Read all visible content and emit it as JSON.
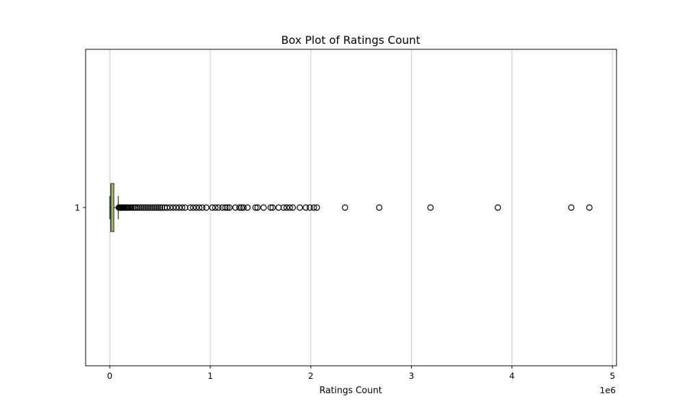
{
  "chart_data": {
    "type": "boxplot",
    "title": "Box Plot of Ratings Count",
    "xlabel": "Ratings Count",
    "ylabel": "",
    "orientation": "horizontal",
    "x_scale_label": "1e6",
    "xlim": [
      -240000,
      5040000
    ],
    "xticks": [
      0,
      1,
      2,
      3,
      4,
      5
    ],
    "x_tick_multiplier": 1000000,
    "y_categories": [
      "1"
    ],
    "grid": "x",
    "colors": {
      "box_fill": "#d8c37a",
      "median": "#4caf50",
      "outlier_edge": "#000000",
      "grid": "#c8c8c8"
    },
    "box": {
      "whisker_low": 0,
      "q1": 10000,
      "median": 20000,
      "q3": 40000,
      "whisker_high": 85000
    },
    "outliers": [
      90000,
      95000,
      100000,
      105000,
      110000,
      115000,
      120000,
      125000,
      130000,
      135000,
      140000,
      150000,
      160000,
      170000,
      180000,
      190000,
      200000,
      215000,
      230000,
      245000,
      260000,
      280000,
      300000,
      320000,
      340000,
      360000,
      380000,
      400000,
      420000,
      440000,
      460000,
      480000,
      500000,
      520000,
      545000,
      570000,
      600000,
      630000,
      660000,
      690000,
      720000,
      750000,
      800000,
      830000,
      860000,
      890000,
      920000,
      960000,
      1020000,
      1050000,
      1080000,
      1120000,
      1150000,
      1170000,
      1190000,
      1250000,
      1290000,
      1310000,
      1330000,
      1370000,
      1450000,
      1470000,
      1530000,
      1600000,
      1620000,
      1680000,
      1730000,
      1760000,
      1790000,
      1820000,
      1890000,
      1950000,
      1990000,
      2030000,
      2060000,
      2340000,
      2680000,
      3190000,
      3860000,
      4590000,
      4770000
    ]
  }
}
